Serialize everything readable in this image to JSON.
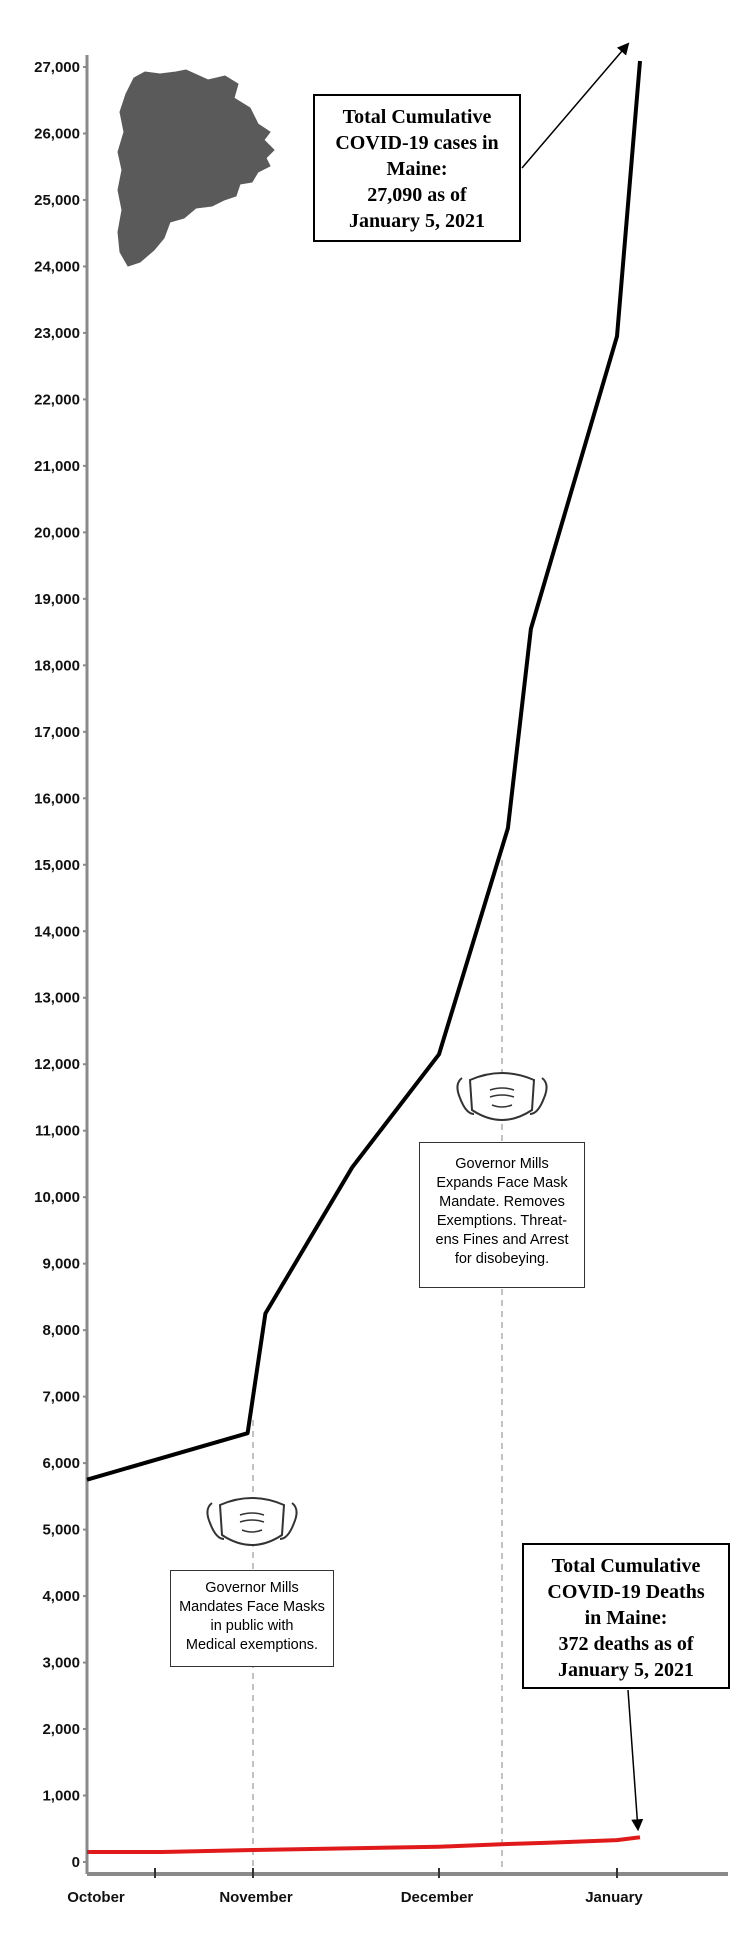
{
  "chart_data": {
    "type": "line",
    "ylim": [
      0,
      27000
    ],
    "yticks": [
      "0",
      "1,000",
      "2,000",
      "3,000",
      "4,000",
      "5,000",
      "6,000",
      "7,000",
      "8,000",
      "9,000",
      "10,000",
      "11,000",
      "12,000",
      "13,000",
      "14,000",
      "15,000",
      "16,000",
      "17,000",
      "18,000",
      "19,000",
      "20,000",
      "21,000",
      "22,000",
      "23,000",
      "24,000",
      "25,000",
      "26,000",
      "27,000"
    ],
    "xlabels": [
      "October",
      "November",
      "December",
      "January"
    ],
    "colors": {
      "cases": "#000000",
      "deaths": "#e01a1a",
      "axis": "#8a8a8a",
      "map": "#5a5a5a"
    },
    "series": [
      {
        "key": "cases",
        "x": [
          "2020-10-01",
          "2020-10-31",
          "2020-11-03",
          "2020-11-17",
          "2020-12-01",
          "2020-12-13",
          "2020-12-17",
          "2021-01-01",
          "2021-01-05"
        ],
        "y": [
          5750,
          6450,
          8250,
          10450,
          12150,
          15550,
          18550,
          22950,
          27090
        ]
      },
      {
        "key": "deaths",
        "x": [
          "2020-10-01",
          "2020-10-15",
          "2020-11-01",
          "2020-12-01",
          "2020-12-13",
          "2020-12-20",
          "2021-01-01",
          "2021-01-05"
        ],
        "y": [
          150,
          150,
          180,
          230,
          270,
          290,
          330,
          372
        ]
      }
    ],
    "annotations": {
      "cases_total": [
        "Total Cumulative",
        "COVID-19 cases in",
        "Maine:",
        "27,090 as of",
        "January 5, 2021"
      ],
      "deaths_total": [
        "Total Cumulative",
        "COVID-19 Deaths",
        "in Maine:",
        "372 deaths as of",
        "January 5, 2021"
      ],
      "mandate_nov": [
        "Governor Mills",
        "Mandates Face Masks",
        "in public with",
        "Medical exemptions."
      ],
      "mandate_dec": [
        "Governor Mills",
        "Expands Face Mask",
        "Mandate. Removes",
        "Exemptions.  Threat-",
        "ens Fines and Arrest",
        "for disobeying."
      ]
    },
    "icons": [
      "maine-map-icon",
      "face-mask-icon"
    ]
  }
}
